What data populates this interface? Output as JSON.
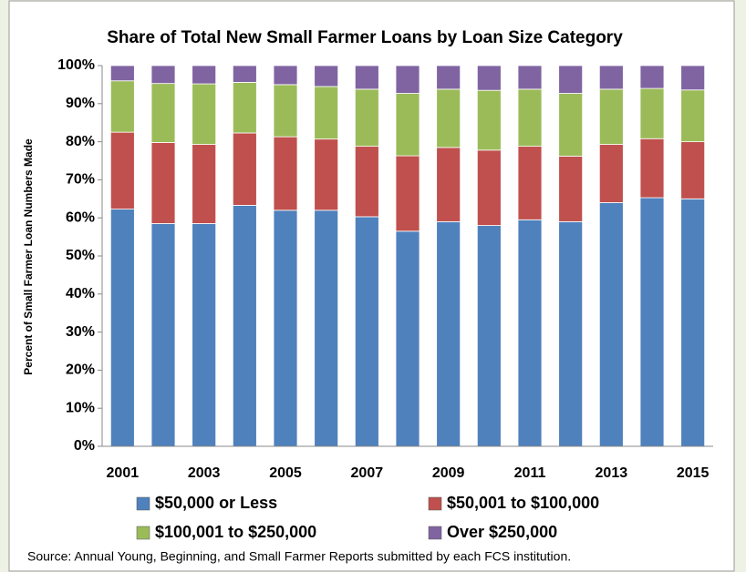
{
  "chart_data": {
    "type": "stacked_bar",
    "title": "Share of Total New Small Farmer Loans by Loan Size Category",
    "y_label": "Percent of Small Farmer Loan Numbers Made",
    "source": "Source:  Annual Young, Beginning, and Small Farmer Reports submitted by each FCS institution.",
    "categories": [
      "2001",
      null,
      "2003",
      null,
      "2005",
      null,
      "2007",
      null,
      "2009",
      null,
      "2011",
      null,
      "2013",
      null,
      "2015"
    ],
    "series": [
      {
        "name": "$50,000 or Less",
        "color": "#4f81bd",
        "values": [
          62.3,
          58.5,
          58.5,
          63.3,
          62,
          62,
          60.3,
          56.5,
          59,
          58,
          59.5,
          59,
          64,
          65.3,
          65
        ]
      },
      {
        "name": "$50,001 to $100,000",
        "color": "#c0504d",
        "values": [
          20.2,
          21.3,
          20.8,
          19.0,
          19.3,
          18.7,
          18.5,
          19.8,
          19.5,
          19.8,
          19.3,
          17.2,
          15.3,
          15.5,
          15.0
        ]
      },
      {
        "name": "$100,001 to $250,000",
        "color": "#9bbb59",
        "values": [
          13.5,
          15.5,
          15.9,
          13.3,
          13.7,
          13.8,
          15.0,
          16.4,
          15.3,
          15.7,
          15.0,
          16.5,
          14.5,
          13.2,
          13.6
        ]
      },
      {
        "name": "Over $250,000",
        "color": "#8064a2",
        "values": [
          4.0,
          4.7,
          4.8,
          4.4,
          5.0,
          5.5,
          6.2,
          7.3,
          6.2,
          6.5,
          6.2,
          7.3,
          6.2,
          6.0,
          6.4
        ]
      }
    ],
    "ylim": [
      0,
      100
    ],
    "yticks": [
      {
        "value": 0,
        "label": "0%"
      },
      {
        "value": 10,
        "label": "10%"
      },
      {
        "value": 20,
        "label": "20%"
      },
      {
        "value": 30,
        "label": "30%"
      },
      {
        "value": 40,
        "label": "40%"
      },
      {
        "value": 50,
        "label": "50%"
      },
      {
        "value": 60,
        "label": "60%"
      },
      {
        "value": 70,
        "label": "70%"
      },
      {
        "value": 80,
        "label": "80%"
      },
      {
        "value": 90,
        "label": "90%"
      },
      {
        "value": 100,
        "label": "100%"
      }
    ],
    "grid": false
  }
}
